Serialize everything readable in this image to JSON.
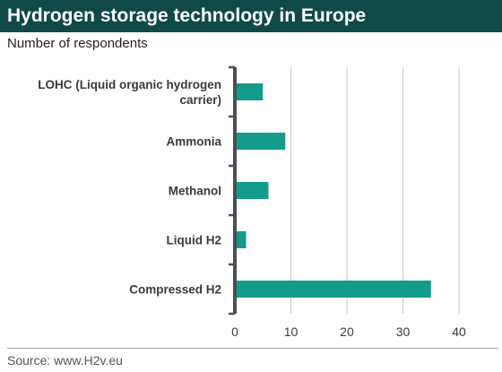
{
  "header": {
    "title": "Hydrogen storage technology in Europe",
    "subtitle": "Number of respondents"
  },
  "footer": {
    "source": "Source: www.H2v.eu"
  },
  "colors": {
    "title_bg": "#0f4a47",
    "bar": "#139b8c",
    "axis": "#4a4f55",
    "grid": "#c8c8c8"
  },
  "chart_data": {
    "type": "bar",
    "orientation": "horizontal",
    "categories": [
      "LOHC (Liquid organic hydrogen carrier)",
      "Ammonia",
      "Methanol",
      "Liquid H2",
      "Compressed H2"
    ],
    "values": [
      5,
      9,
      6,
      2,
      35
    ],
    "title": "Hydrogen storage technology in Europe",
    "subtitle": "Number of respondents",
    "xlim": [
      0,
      40
    ],
    "xticks": [
      0,
      10,
      20,
      30,
      40
    ],
    "grid": true,
    "legend": "none"
  }
}
